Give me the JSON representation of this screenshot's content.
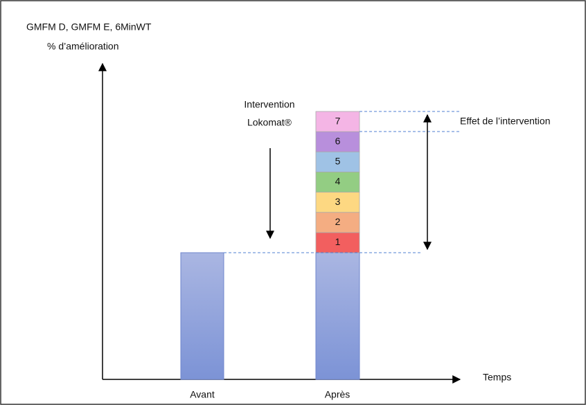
{
  "y_axis_label": [
    "GMFM D, GMFM E, 6MinWT",
    "% d’amélioration"
  ],
  "x_axis_label": "Temps",
  "bars": [
    "Avant",
    "Après"
  ],
  "intervention_label": [
    "Intervention",
    "Lokomat®"
  ],
  "effect_label": "Effet de l’intervention",
  "segments": [
    {
      "label": "1",
      "color": "#f25f5f"
    },
    {
      "label": "2",
      "color": "#f4ad82"
    },
    {
      "label": "3",
      "color": "#fdd882"
    },
    {
      "label": "4",
      "color": "#93cd83"
    },
    {
      "label": "5",
      "color": "#9fc2e5"
    },
    {
      "label": "6",
      "color": "#b88fdc"
    },
    {
      "label": "7",
      "color": "#f4b5e5"
    }
  ]
}
